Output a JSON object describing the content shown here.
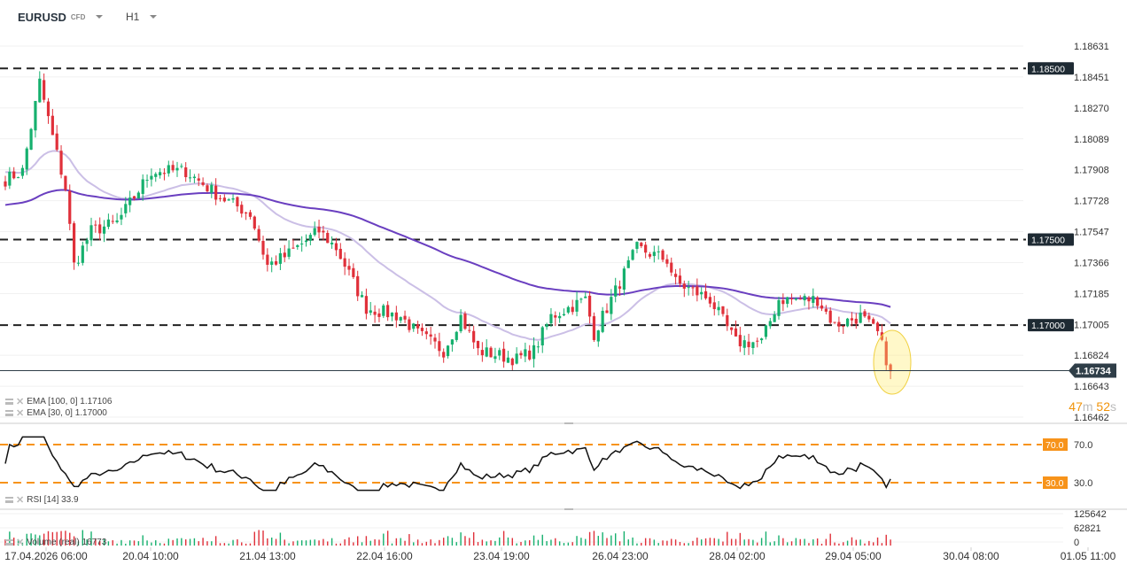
{
  "header": {
    "symbol": "EURUSD",
    "symbol_type": "CFD",
    "timeframe": "H1"
  },
  "indicators": {
    "ema100": "EMA [100, 0] 1.17106",
    "ema30": "EMA [30, 0] 1.17000",
    "rsi": "RSI [14] 33.9",
    "volume": "Volume (real) 16773"
  },
  "timer": {
    "minutes": "47",
    "m": "m",
    "seconds": "52",
    "s": "s"
  },
  "colors": {
    "up": "#16b06e",
    "down": "#e0303a",
    "ema100": "#6a3fc0",
    "ema30": "#cbbfe6",
    "rsi_level": "#f7931a",
    "price_tag": "#2f3e48"
  },
  "chart_data": {
    "type": "candlestick",
    "price_axis": [
      "1.18631",
      "1.18451",
      "1.18270",
      "1.18089",
      "1.17908",
      "1.17728",
      "1.17547",
      "1.17366",
      "1.17185",
      "1.17005",
      "1.16824",
      "1.16643",
      "1.16462"
    ],
    "ylim": [
      1.16462,
      1.18631
    ],
    "levels": [
      {
        "value": 1.185,
        "label": "1.18500"
      },
      {
        "value": 1.175,
        "label": "1.17500"
      },
      {
        "value": 1.17,
        "label": "1.17000"
      }
    ],
    "current_price": {
      "value": 1.16734,
      "label": "1.16734"
    },
    "time_axis": [
      "17.04.2026 06:00",
      "20.04 10:00",
      "21.04 13:00",
      "22.04 16:00",
      "23.04 19:00",
      "26.04 23:00",
      "28.04 02:00",
      "29.04 05:00",
      "30.04 08:00",
      "01.05 11:00"
    ],
    "close_keypoints": [
      [
        0,
        1.1785
      ],
      [
        4,
        1.179
      ],
      [
        8,
        1.1842
      ],
      [
        11,
        1.181
      ],
      [
        14,
        1.178
      ],
      [
        16,
        1.1735
      ],
      [
        20,
        1.1755
      ],
      [
        26,
        1.176
      ],
      [
        34,
        1.179
      ],
      [
        42,
        1.179
      ],
      [
        50,
        1.1775
      ],
      [
        57,
        1.1765
      ],
      [
        61,
        1.1735
      ],
      [
        65,
        1.174
      ],
      [
        73,
        1.1755
      ],
      [
        77,
        1.1745
      ],
      [
        81,
        1.1725
      ],
      [
        84,
        1.171
      ],
      [
        92,
        1.1705
      ],
      [
        96,
        1.1695
      ],
      [
        102,
        1.1685
      ],
      [
        106,
        1.1705
      ],
      [
        110,
        1.1685
      ],
      [
        119,
        1.168
      ],
      [
        123,
        1.1685
      ],
      [
        127,
        1.1705
      ],
      [
        135,
        1.1715
      ],
      [
        137,
        1.1695
      ],
      [
        143,
        1.1725
      ],
      [
        147,
        1.1745
      ],
      [
        154,
        1.1738
      ],
      [
        156,
        1.1725
      ],
      [
        164,
        1.1715
      ],
      [
        170,
        1.169
      ],
      [
        176,
        1.169
      ],
      [
        180,
        1.1715
      ],
      [
        189,
        1.1715
      ],
      [
        193,
        1.17
      ],
      [
        199,
        1.1705
      ],
      [
        203,
        1.1695
      ],
      [
        206,
        1.1673
      ]
    ],
    "rsi": {
      "upper": {
        "value": 70,
        "label": "70.0"
      },
      "lower": {
        "value": 30,
        "label": "30.0"
      },
      "last": 33.9
    },
    "volume_axis": [
      "125642",
      "62821",
      "0"
    ],
    "volume_max": 125642,
    "ema_periods": [
      100,
      30
    ]
  }
}
